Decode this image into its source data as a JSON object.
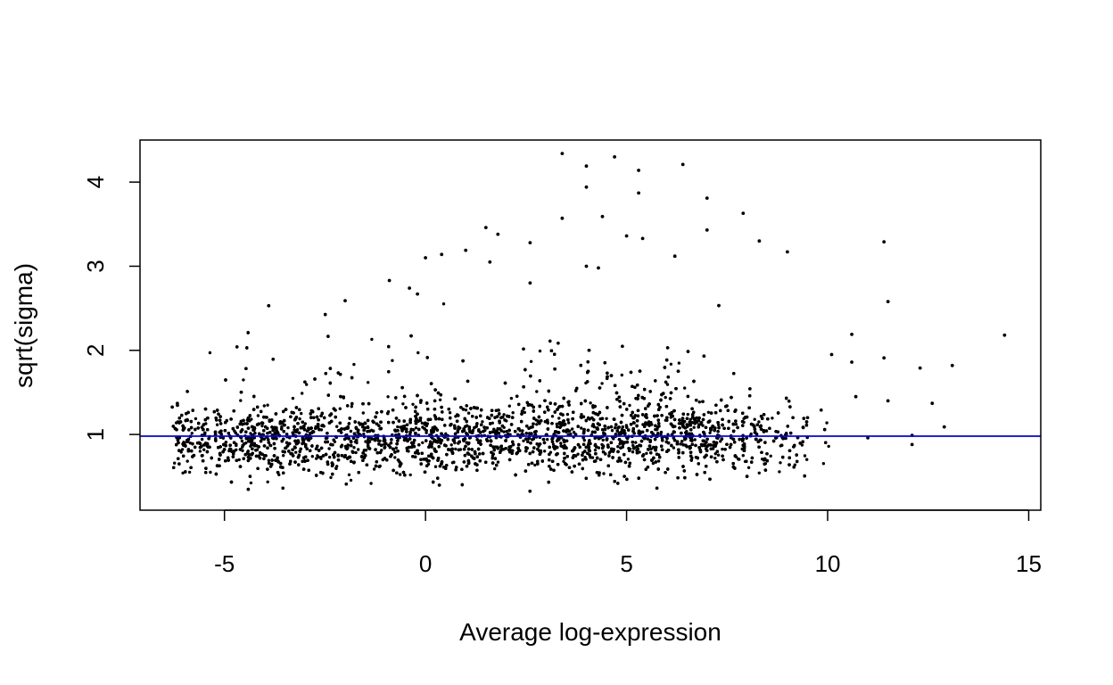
{
  "chart_data": {
    "type": "scatter",
    "title": "",
    "xlabel": "Average log-expression",
    "ylabel": "sqrt(sigma)",
    "xlim": [
      -7.1,
      15.3
    ],
    "ylim": [
      0.1,
      4.5
    ],
    "x_ticks": [
      -5,
      0,
      5,
      10,
      15
    ],
    "y_ticks": [
      1,
      2,
      3,
      4
    ],
    "x_tick_labels": [
      "-5",
      "0",
      "5",
      "10",
      "15"
    ],
    "y_tick_labels": [
      "1",
      "2",
      "3",
      "4"
    ],
    "grid": false,
    "legend": "none",
    "point_color": "#000000",
    "reference_line": {
      "orientation": "horizontal",
      "y": 0.98,
      "color": "#0000ff"
    },
    "bulk_description": "dense cloud of roughly 15000 genes between x=-6.3 and x=9.5 with sqrt(sigma) mostly between 0.3 and 1.7, centered near 1",
    "notable_points": [
      {
        "x": 3.4,
        "y": 4.34
      },
      {
        "x": 4.7,
        "y": 4.3
      },
      {
        "x": 6.4,
        "y": 4.21
      },
      {
        "x": 4.0,
        "y": 4.19
      },
      {
        "x": 5.3,
        "y": 4.14
      },
      {
        "x": 4.0,
        "y": 3.94
      },
      {
        "x": 5.3,
        "y": 3.87
      },
      {
        "x": 7.0,
        "y": 3.81
      },
      {
        "x": 7.9,
        "y": 3.63
      },
      {
        "x": 3.4,
        "y": 3.57
      },
      {
        "x": 4.4,
        "y": 3.59
      },
      {
        "x": 1.5,
        "y": 3.46
      },
      {
        "x": 7.0,
        "y": 3.43
      },
      {
        "x": 1.8,
        "y": 3.38
      },
      {
        "x": 5.0,
        "y": 3.36
      },
      {
        "x": 5.4,
        "y": 3.33
      },
      {
        "x": 11.4,
        "y": 3.29
      },
      {
        "x": 8.3,
        "y": 3.3
      },
      {
        "x": 2.6,
        "y": 3.28
      },
      {
        "x": 1.0,
        "y": 3.19
      },
      {
        "x": 9.0,
        "y": 3.17
      },
      {
        "x": 0.4,
        "y": 3.14
      },
      {
        "x": 0.0,
        "y": 3.1
      },
      {
        "x": 6.2,
        "y": 3.12
      },
      {
        "x": 1.6,
        "y": 3.05
      },
      {
        "x": 4.0,
        "y": 3.0
      },
      {
        "x": 4.3,
        "y": 2.98
      },
      {
        "x": -0.9,
        "y": 2.83
      },
      {
        "x": -0.4,
        "y": 2.74
      },
      {
        "x": -0.2,
        "y": 2.67
      },
      {
        "x": 2.6,
        "y": 2.8
      },
      {
        "x": 11.5,
        "y": 2.58
      },
      {
        "x": -2.0,
        "y": 2.59
      },
      {
        "x": -3.9,
        "y": 2.53
      },
      {
        "x": 14.4,
        "y": 2.18
      },
      {
        "x": 10.6,
        "y": 2.19
      },
      {
        "x": 13.1,
        "y": 1.82
      },
      {
        "x": 12.3,
        "y": 1.79
      },
      {
        "x": 11.4,
        "y": 1.91
      },
      {
        "x": 12.6,
        "y": 1.37
      },
      {
        "x": 11.5,
        "y": 1.4
      },
      {
        "x": 12.9,
        "y": 1.09
      },
      {
        "x": 12.1,
        "y": 0.99
      },
      {
        "x": 12.1,
        "y": 0.88
      },
      {
        "x": 10.6,
        "y": 1.86
      },
      {
        "x": 10.7,
        "y": 1.45
      },
      {
        "x": 10.1,
        "y": 1.95
      },
      {
        "x": 11.0,
        "y": 0.96
      }
    ]
  }
}
